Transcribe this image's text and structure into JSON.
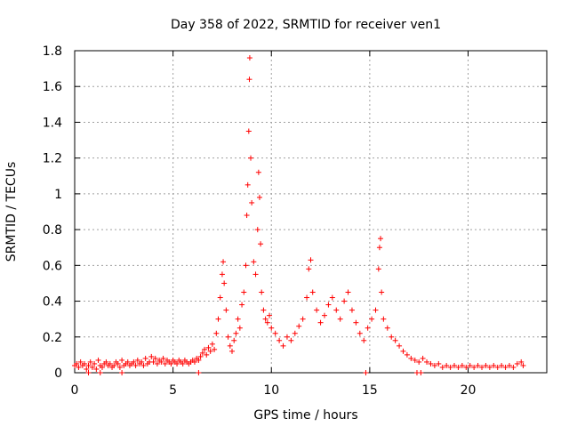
{
  "chart_data": {
    "type": "scatter",
    "title": "Day 358 of 2022, SRMTID for receiver ven1",
    "xlabel": "GPS time / hours",
    "ylabel": "SRMTID / TECUs",
    "xlim": [
      0,
      24
    ],
    "ylim": [
      0,
      1.8
    ],
    "xticks": [
      0,
      5,
      10,
      15,
      20
    ],
    "xtick_labels": [
      "0",
      "5",
      "10",
      "15",
      "20"
    ],
    "yticks": [
      0,
      0.2,
      0.4,
      0.6,
      0.8,
      1.0,
      1.2,
      1.4,
      1.6,
      1.8
    ],
    "ytick_labels": [
      "0",
      "0.2",
      "0.4",
      "0.6",
      "0.8",
      "1",
      "1.2",
      "1.4",
      "1.6",
      "1.8"
    ],
    "grid": true,
    "marker": "+",
    "color": "#ff0000",
    "series": [
      {
        "name": "ven1",
        "points": [
          [
            0.0,
            0.04
          ],
          [
            0.1,
            0.05
          ],
          [
            0.2,
            0.03
          ],
          [
            0.3,
            0.06
          ],
          [
            0.4,
            0.04
          ],
          [
            0.5,
            0.05
          ],
          [
            0.6,
            0.02
          ],
          [
            0.7,
            0.04
          ],
          [
            0.8,
            0.06
          ],
          [
            0.9,
            0.03
          ],
          [
            1.0,
            0.05
          ],
          [
            1.1,
            0.02
          ],
          [
            1.2,
            0.07
          ],
          [
            1.3,
            0.04
          ],
          [
            1.4,
            0.03
          ],
          [
            1.5,
            0.05
          ],
          [
            1.6,
            0.06
          ],
          [
            1.7,
            0.04
          ],
          [
            1.8,
            0.05
          ],
          [
            1.9,
            0.03
          ],
          [
            2.0,
            0.04
          ],
          [
            2.1,
            0.06
          ],
          [
            2.2,
            0.05
          ],
          [
            2.3,
            0.03
          ],
          [
            2.4,
            0.07
          ],
          [
            2.5,
            0.04
          ],
          [
            2.6,
            0.05
          ],
          [
            2.7,
            0.06
          ],
          [
            2.8,
            0.04
          ],
          [
            2.9,
            0.05
          ],
          [
            3.0,
            0.06
          ],
          [
            3.1,
            0.04
          ],
          [
            3.2,
            0.07
          ],
          [
            3.3,
            0.05
          ],
          [
            3.4,
            0.06
          ],
          [
            3.5,
            0.04
          ],
          [
            3.6,
            0.08
          ],
          [
            3.7,
            0.05
          ],
          [
            3.8,
            0.06
          ],
          [
            3.9,
            0.09
          ],
          [
            4.0,
            0.06
          ],
          [
            4.1,
            0.08
          ],
          [
            4.2,
            0.05
          ],
          [
            4.3,
            0.07
          ],
          [
            4.4,
            0.06
          ],
          [
            4.5,
            0.08
          ],
          [
            4.6,
            0.05
          ],
          [
            4.7,
            0.07
          ],
          [
            4.8,
            0.06
          ],
          [
            4.9,
            0.05
          ],
          [
            5.0,
            0.07
          ],
          [
            5.1,
            0.06
          ],
          [
            5.2,
            0.05
          ],
          [
            5.3,
            0.07
          ],
          [
            5.4,
            0.06
          ],
          [
            5.5,
            0.05
          ],
          [
            5.6,
            0.07
          ],
          [
            5.7,
            0.06
          ],
          [
            5.8,
            0.05
          ],
          [
            5.9,
            0.06
          ],
          [
            6.0,
            0.07
          ],
          [
            6.1,
            0.06
          ],
          [
            6.2,
            0.08
          ],
          [
            6.3,
            0.07
          ],
          [
            6.4,
            0.09
          ],
          [
            6.5,
            0.11
          ],
          [
            6.6,
            0.13
          ],
          [
            6.7,
            0.1
          ],
          [
            6.8,
            0.14
          ],
          [
            6.9,
            0.12
          ],
          [
            7.0,
            0.16
          ],
          [
            7.1,
            0.13
          ],
          [
            7.2,
            0.22
          ],
          [
            7.3,
            0.3
          ],
          [
            7.4,
            0.42
          ],
          [
            7.5,
            0.55
          ],
          [
            7.55,
            0.62
          ],
          [
            7.6,
            0.5
          ],
          [
            7.7,
            0.35
          ],
          [
            7.8,
            0.2
          ],
          [
            7.9,
            0.15
          ],
          [
            8.0,
            0.12
          ],
          [
            8.1,
            0.18
          ],
          [
            8.2,
            0.22
          ],
          [
            8.3,
            0.3
          ],
          [
            8.4,
            0.25
          ],
          [
            8.5,
            0.38
          ],
          [
            8.6,
            0.45
          ],
          [
            8.7,
            0.6
          ],
          [
            8.75,
            0.88
          ],
          [
            8.8,
            1.05
          ],
          [
            8.85,
            1.35
          ],
          [
            8.88,
            1.64
          ],
          [
            8.9,
            1.76
          ],
          [
            8.95,
            1.2
          ],
          [
            9.0,
            0.95
          ],
          [
            9.1,
            0.62
          ],
          [
            9.2,
            0.55
          ],
          [
            9.3,
            0.8
          ],
          [
            9.35,
            1.12
          ],
          [
            9.4,
            0.98
          ],
          [
            9.45,
            0.72
          ],
          [
            9.5,
            0.45
          ],
          [
            9.6,
            0.35
          ],
          [
            9.7,
            0.3
          ],
          [
            9.8,
            0.28
          ],
          [
            9.9,
            0.32
          ],
          [
            10.0,
            0.25
          ],
          [
            10.2,
            0.22
          ],
          [
            10.4,
            0.18
          ],
          [
            10.6,
            0.15
          ],
          [
            10.8,
            0.2
          ],
          [
            11.0,
            0.18
          ],
          [
            11.2,
            0.22
          ],
          [
            11.4,
            0.26
          ],
          [
            11.6,
            0.3
          ],
          [
            11.8,
            0.42
          ],
          [
            11.9,
            0.58
          ],
          [
            12.0,
            0.63
          ],
          [
            12.1,
            0.45
          ],
          [
            12.3,
            0.35
          ],
          [
            12.5,
            0.28
          ],
          [
            12.7,
            0.32
          ],
          [
            12.9,
            0.38
          ],
          [
            13.1,
            0.42
          ],
          [
            13.3,
            0.35
          ],
          [
            13.5,
            0.3
          ],
          [
            13.7,
            0.4
          ],
          [
            13.9,
            0.45
          ],
          [
            14.1,
            0.35
          ],
          [
            14.3,
            0.28
          ],
          [
            14.5,
            0.22
          ],
          [
            14.7,
            0.18
          ],
          [
            14.9,
            0.25
          ],
          [
            15.1,
            0.3
          ],
          [
            15.3,
            0.35
          ],
          [
            15.45,
            0.58
          ],
          [
            15.5,
            0.7
          ],
          [
            15.55,
            0.75
          ],
          [
            15.6,
            0.45
          ],
          [
            15.7,
            0.3
          ],
          [
            15.9,
            0.25
          ],
          [
            16.1,
            0.2
          ],
          [
            16.3,
            0.18
          ],
          [
            16.5,
            0.15
          ],
          [
            16.7,
            0.12
          ],
          [
            16.9,
            0.1
          ],
          [
            17.1,
            0.08
          ],
          [
            17.3,
            0.07
          ],
          [
            17.5,
            0.06
          ],
          [
            17.7,
            0.08
          ],
          [
            17.9,
            0.06
          ],
          [
            18.1,
            0.05
          ],
          [
            18.3,
            0.04
          ],
          [
            18.5,
            0.05
          ],
          [
            18.7,
            0.03
          ],
          [
            18.9,
            0.04
          ],
          [
            19.1,
            0.03
          ],
          [
            19.3,
            0.04
          ],
          [
            19.5,
            0.03
          ],
          [
            19.7,
            0.04
          ],
          [
            19.9,
            0.03
          ],
          [
            20.1,
            0.04
          ],
          [
            20.3,
            0.03
          ],
          [
            20.5,
            0.04
          ],
          [
            20.7,
            0.03
          ],
          [
            20.9,
            0.04
          ],
          [
            21.1,
            0.03
          ],
          [
            21.3,
            0.04
          ],
          [
            21.5,
            0.03
          ],
          [
            21.7,
            0.04
          ],
          [
            21.9,
            0.03
          ],
          [
            22.1,
            0.04
          ],
          [
            22.3,
            0.03
          ],
          [
            22.5,
            0.05
          ],
          [
            22.7,
            0.06
          ],
          [
            22.8,
            0.04
          ],
          [
            0.7,
            0.0
          ],
          [
            1.3,
            0.0
          ],
          [
            2.4,
            0.0
          ],
          [
            6.3,
            0.0
          ],
          [
            14.8,
            0.0
          ],
          [
            17.4,
            0.0
          ],
          [
            17.6,
            0.0
          ]
        ]
      }
    ]
  }
}
